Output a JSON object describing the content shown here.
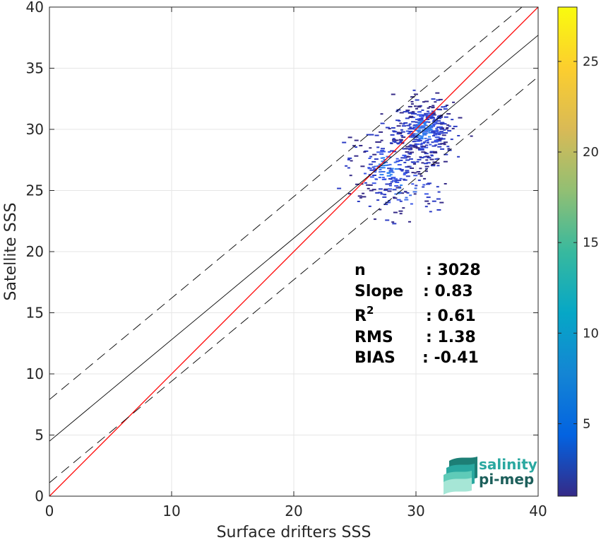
{
  "chart_data": {
    "type": "scatter",
    "subtype": "density-scatter",
    "xlabel": "Surface drifters SSS",
    "ylabel": "Satellite SSS",
    "xlim": [
      0,
      40
    ],
    "ylim": [
      0,
      40
    ],
    "xticks": [
      "0",
      "10",
      "20",
      "30",
      "40"
    ],
    "yticks": [
      "0",
      "5",
      "10",
      "15",
      "20",
      "25",
      "30",
      "35",
      "40"
    ],
    "grid": true,
    "lines": [
      {
        "name": "",
        "kind": "identity",
        "slope": 1.0,
        "intercept": 0.0,
        "color": "#ff0000",
        "style": "solid"
      },
      {
        "name": "",
        "kind": "fit",
        "slope": 0.83,
        "intercept": 4.5,
        "color": "#000000",
        "style": "solid"
      },
      {
        "name": "",
        "kind": "fit-upper",
        "slope": 0.83,
        "intercept": 7.9,
        "color": "#000000",
        "style": "dashed"
      },
      {
        "name": "",
        "kind": "fit-lower",
        "slope": 0.83,
        "intercept": 1.1,
        "color": "#000000",
        "style": "dashed"
      }
    ],
    "density_clusters": [
      {
        "cx": 30.5,
        "cy": 30.0,
        "sx": 1.2,
        "sy": 1.3,
        "n": 380
      },
      {
        "cx": 27.5,
        "cy": 27.0,
        "sx": 1.6,
        "sy": 1.5,
        "n": 200
      },
      {
        "cx": 29.0,
        "cy": 25.0,
        "sx": 1.6,
        "sy": 1.2,
        "n": 60
      }
    ],
    "colorbar": {
      "range": [
        1,
        28
      ],
      "ticks": [
        "5",
        "10",
        "15",
        "20",
        "25"
      ],
      "tick_values": [
        5,
        10,
        15,
        20,
        25
      ],
      "colormap": [
        "#352a87",
        "#0363e1",
        "#1485d4",
        "#06a7c6",
        "#38b99e",
        "#92bf73",
        "#d9ba56",
        "#fcce2e",
        "#f9fb0e"
      ]
    },
    "stats": [
      {
        "label": "n",
        "value": ": 3028"
      },
      {
        "label": "Slope",
        "value": ": 0.83"
      },
      {
        "label": "R",
        "sup": "2",
        "value": ": 0.61"
      },
      {
        "label": "RMS",
        "value": ": 1.38"
      },
      {
        "label": "BIAS",
        "value": ": -0.41"
      }
    ]
  },
  "logo": {
    "line1": "salinity",
    "line2": "pi-mep",
    "color1": "#2aa8a0",
    "color2": "#1d5f5b"
  }
}
